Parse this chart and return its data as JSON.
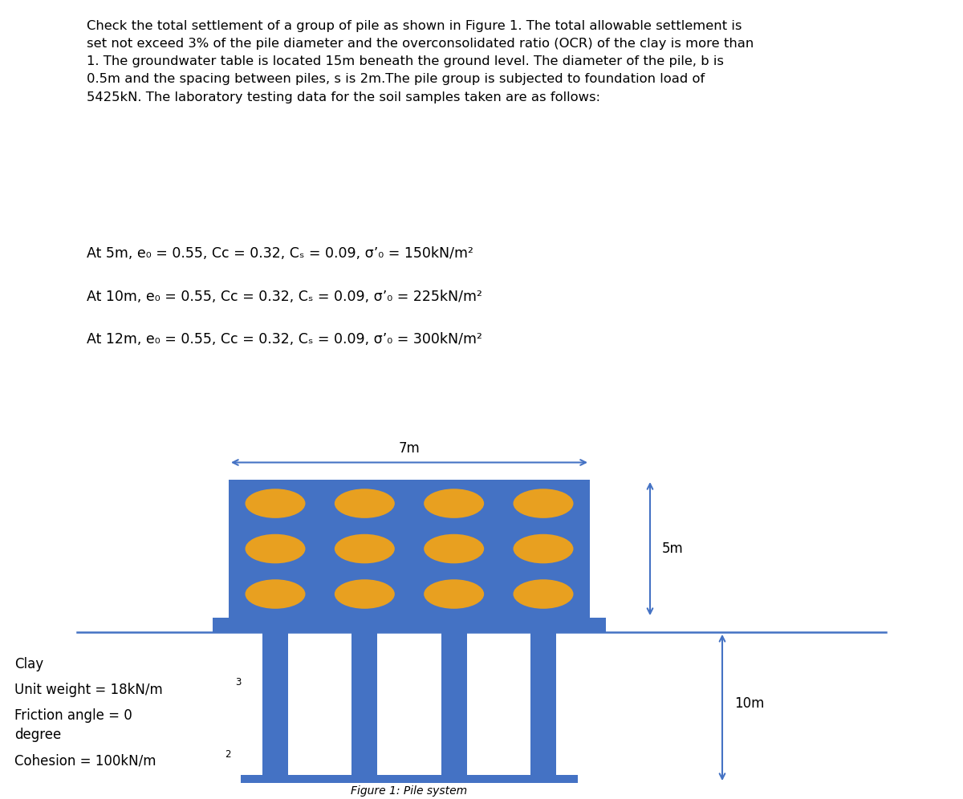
{
  "bg_color": "#ffffff",
  "text_color": "#000000",
  "blue_color": "#4472C4",
  "orange_color": "#E8A020",
  "arrow_color": "#4472C4",
  "line_color": "#4472C4",
  "paragraph": "Check the total settlement of a group of pile as shown in Figure 1. The total allowable settlement is\nset not exceed 3% of the pile diameter and the overconsolidated ratio (OCR) of the clay is more than\n1. The groundwater table is located 15m beneath the ground level. The diameter of the pile, b is\n0.5m and the spacing between piles, s is 2m.The pile group is subjected to foundation load of\n5425kN. The laboratory testing data for the soil samples taken are as follows:",
  "line1": "At 5m, e₀ = 0.55, Cc = 0.32, Cₛ = 0.09, σ’₀ = 150kN/m²",
  "line2": "At 10m, e₀ = 0.55, Cc = 0.32, Cₛ = 0.09, σ’₀ = 225kN/m²",
  "line3": "At 12m, e₀ = 0.55, Cc = 0.32, Cₛ = 0.09, σ’₀ = 300kN/m²",
  "fig_caption": "Figure 1: Pile system",
  "label_7m": "7m",
  "label_5m": "5m",
  "label_10m": "10m",
  "pile_rows": 3,
  "pile_cols": 4,
  "font_size_para": 11.8,
  "font_size_data": 12.5,
  "font_size_label": 12
}
